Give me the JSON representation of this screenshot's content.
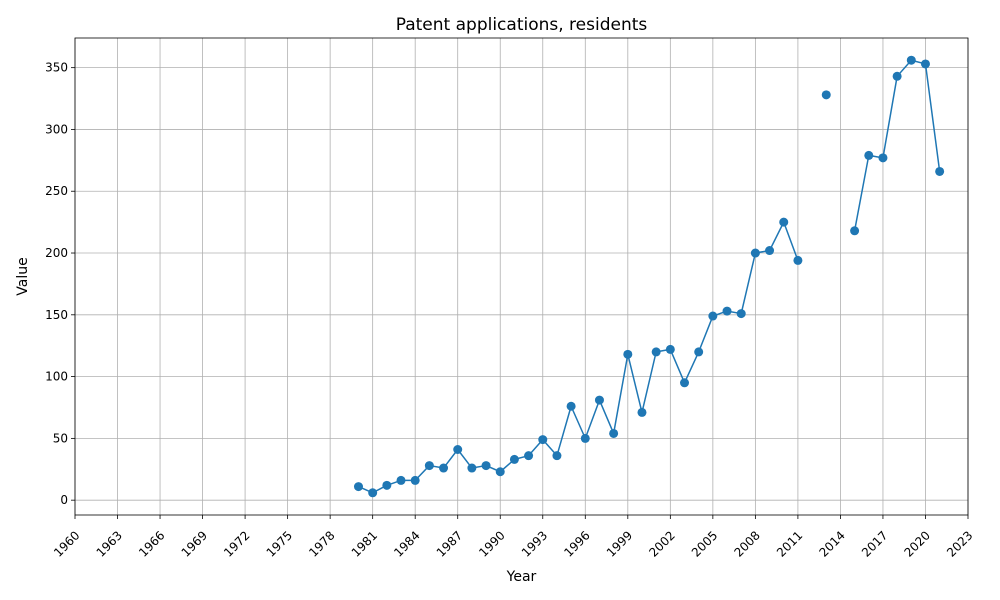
{
  "chart_data": {
    "type": "line",
    "title": "Patent applications, residents",
    "xlabel": "Year",
    "ylabel": "Value",
    "xlim": [
      1960,
      2023
    ],
    "ylim": [
      -12,
      374
    ],
    "xticks": [
      1960,
      1963,
      1966,
      1969,
      1972,
      1975,
      1978,
      1981,
      1984,
      1987,
      1990,
      1993,
      1996,
      1999,
      2002,
      2005,
      2008,
      2011,
      2014,
      2017,
      2020,
      2023
    ],
    "yticks": [
      0,
      50,
      100,
      150,
      200,
      250,
      300,
      350
    ],
    "grid": true,
    "color": "#1f77b4",
    "series": [
      {
        "x": [
          1980,
          1981,
          1982,
          1983,
          1984,
          1985,
          1986,
          1987,
          1988,
          1989,
          1990,
          1991,
          1992,
          1993,
          1994,
          1995,
          1996,
          1997,
          1998,
          1999,
          2000,
          2001,
          2002,
          2003,
          2004,
          2005,
          2006,
          2007,
          2008,
          2009,
          2010,
          2011,
          2012,
          2013,
          2014,
          2015,
          2016,
          2017,
          2018,
          2019,
          2020,
          2021
        ],
        "values": [
          11,
          6,
          12,
          16,
          16,
          28,
          26,
          41,
          26,
          28,
          23,
          33,
          36,
          49,
          36,
          76,
          50,
          81,
          54,
          118,
          71,
          120,
          122,
          95,
          120,
          149,
          153,
          151,
          200,
          202,
          225,
          194,
          null,
          328,
          null,
          218,
          279,
          277,
          343,
          356,
          353,
          266
        ]
      }
    ]
  }
}
